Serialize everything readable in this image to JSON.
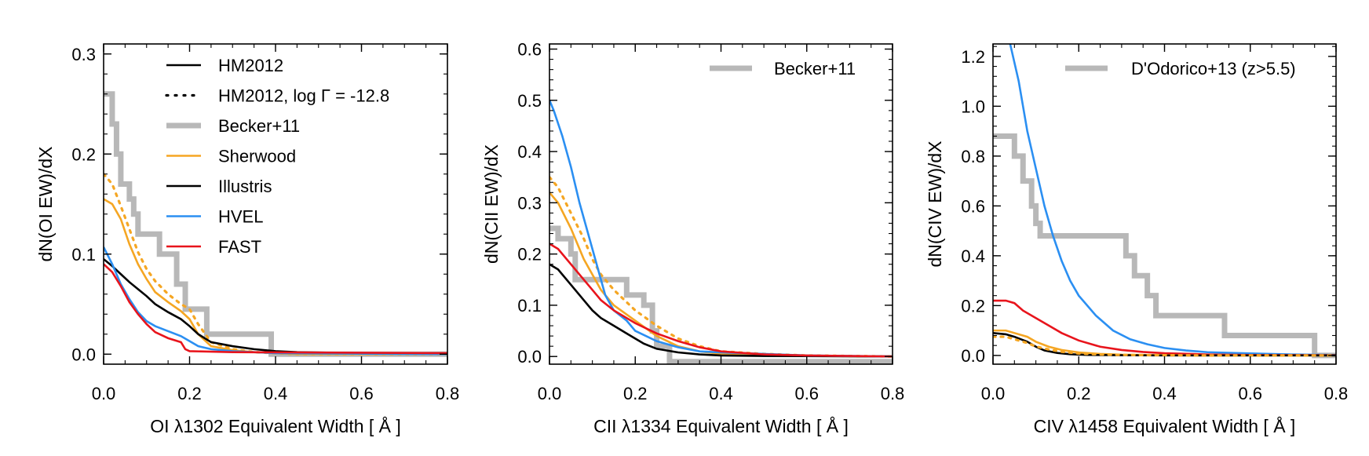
{
  "chart_data": [
    {
      "type": "line",
      "xlabel": "OI λ1302 Equivalent Width [ Å ]",
      "ylabel": "dN(OI EW)/dX",
      "xlim": [
        0.0,
        0.8
      ],
      "ylim": [
        -0.01,
        0.31
      ],
      "xticks": [
        "0.0",
        "0.2",
        "0.4",
        "0.6",
        "0.8"
      ],
      "yticks": [
        "0.0",
        "0.1",
        "0.2",
        "0.3"
      ],
      "legend_position": "top-right",
      "colors": {
        "data": "#b8b8b8",
        "sherwood": "#f5a623",
        "illustris": "#000000",
        "hvel": "#2b8ff2",
        "fast": "#e8141c"
      },
      "legend": [
        {
          "label": "HM2012",
          "style": "solid",
          "color": "#000000"
        },
        {
          "label": "HM2012, log Γ = -12.8",
          "style": "dotted",
          "color": "#000000"
        },
        {
          "label": "Becker+11",
          "style": "thick",
          "color": "#b8b8b8"
        },
        {
          "label": "Sherwood",
          "style": "solid",
          "color": "#f5a623"
        },
        {
          "label": "Illustris",
          "style": "solid",
          "color": "#000000"
        },
        {
          "label": "HVEL",
          "style": "solid",
          "color": "#2b8ff2"
        },
        {
          "label": "FAST",
          "style": "solid",
          "color": "#e8141c"
        }
      ],
      "series": [
        {
          "key": "data",
          "style": "thick",
          "shape": "step",
          "x": [
            0.0,
            0.02,
            0.03,
            0.04,
            0.06,
            0.07,
            0.08,
            0.1,
            0.13,
            0.17,
            0.19,
            0.24,
            0.39,
            0.39,
            0.8
          ],
          "y": [
            0.26,
            0.23,
            0.2,
            0.17,
            0.155,
            0.14,
            0.12,
            0.12,
            0.1,
            0.07,
            0.045,
            0.02,
            0.02,
            0.0,
            0.0
          ]
        },
        {
          "key": "sherwood",
          "style": "solid",
          "shape": "line",
          "x": [
            0.0,
            0.02,
            0.04,
            0.06,
            0.08,
            0.1,
            0.12,
            0.15,
            0.18,
            0.2,
            0.22,
            0.25,
            0.3,
            0.35,
            0.4,
            0.45,
            0.8
          ],
          "y": [
            0.155,
            0.15,
            0.135,
            0.11,
            0.09,
            0.075,
            0.062,
            0.052,
            0.043,
            0.035,
            0.02,
            0.008,
            0.004,
            0.002,
            0.001,
            0.0,
            0.0
          ]
        },
        {
          "key": "sherwood",
          "style": "dotted",
          "shape": "line",
          "x": [
            0.0,
            0.02,
            0.04,
            0.06,
            0.08,
            0.1,
            0.12,
            0.15,
            0.18,
            0.2,
            0.22,
            0.25,
            0.3,
            0.35,
            0.4,
            0.45,
            0.8
          ],
          "y": [
            0.18,
            0.17,
            0.148,
            0.125,
            0.102,
            0.085,
            0.073,
            0.06,
            0.05,
            0.045,
            0.03,
            0.012,
            0.005,
            0.002,
            0.001,
            0.0,
            0.0
          ]
        },
        {
          "key": "illustris",
          "style": "solid",
          "shape": "line",
          "x": [
            0.0,
            0.02,
            0.04,
            0.06,
            0.08,
            0.1,
            0.12,
            0.15,
            0.18,
            0.2,
            0.22,
            0.25,
            0.3,
            0.35,
            0.4,
            0.45,
            0.6,
            0.8
          ],
          "y": [
            0.095,
            0.088,
            0.08,
            0.072,
            0.065,
            0.058,
            0.05,
            0.042,
            0.035,
            0.028,
            0.02,
            0.012,
            0.008,
            0.005,
            0.003,
            0.002,
            0.001,
            0.001
          ]
        },
        {
          "key": "hvel",
          "style": "solid",
          "shape": "line",
          "x": [
            0.0,
            0.02,
            0.04,
            0.06,
            0.08,
            0.1,
            0.12,
            0.15,
            0.18,
            0.2,
            0.22,
            0.25,
            0.3,
            0.35,
            0.4,
            0.8
          ],
          "y": [
            0.107,
            0.09,
            0.07,
            0.055,
            0.042,
            0.033,
            0.028,
            0.023,
            0.018,
            0.013,
            0.008,
            0.005,
            0.003,
            0.002,
            0.001,
            0.0
          ]
        },
        {
          "key": "fast",
          "style": "solid",
          "shape": "line",
          "x": [
            0.0,
            0.02,
            0.04,
            0.06,
            0.08,
            0.1,
            0.12,
            0.15,
            0.18,
            0.19,
            0.2,
            0.3,
            0.8
          ],
          "y": [
            0.09,
            0.082,
            0.068,
            0.052,
            0.04,
            0.03,
            0.022,
            0.016,
            0.012,
            0.005,
            0.003,
            0.002,
            0.001
          ]
        }
      ]
    },
    {
      "type": "line",
      "xlabel": "CII λ1334 Equivalent Width [ Å ]",
      "ylabel": "dN(CII EW)/dX",
      "xlim": [
        0.0,
        0.8
      ],
      "ylim": [
        -0.015,
        0.61
      ],
      "xticks": [
        "0.0",
        "0.2",
        "0.4",
        "0.6",
        "0.8"
      ],
      "yticks": [
        "0.0",
        "0.1",
        "0.2",
        "0.3",
        "0.4",
        "0.5",
        "0.6"
      ],
      "legend_position": "top-right",
      "colors": {
        "data": "#b8b8b8",
        "sherwood": "#f5a623",
        "illustris": "#000000",
        "hvel": "#2b8ff2",
        "fast": "#e8141c"
      },
      "legend": [
        {
          "label": "Becker+11",
          "style": "thick",
          "color": "#b8b8b8"
        }
      ],
      "series": [
        {
          "key": "data",
          "style": "thick",
          "shape": "step",
          "x": [
            0.0,
            0.02,
            0.05,
            0.06,
            0.1,
            0.18,
            0.22,
            0.24,
            0.25,
            0.28,
            0.28,
            0.8
          ],
          "y": [
            0.25,
            0.23,
            0.2,
            0.15,
            0.15,
            0.12,
            0.1,
            0.05,
            0.02,
            0.0,
            -0.01,
            -0.01
          ]
        },
        {
          "key": "sherwood",
          "style": "solid",
          "shape": "line",
          "x": [
            0.0,
            0.02,
            0.05,
            0.08,
            0.1,
            0.12,
            0.15,
            0.2,
            0.25,
            0.3,
            0.35,
            0.4,
            0.5,
            0.6,
            0.8
          ],
          "y": [
            0.32,
            0.3,
            0.25,
            0.19,
            0.16,
            0.13,
            0.1,
            0.07,
            0.04,
            0.02,
            0.01,
            0.005,
            0.002,
            0.001,
            0.0
          ]
        },
        {
          "key": "sherwood",
          "style": "dotted",
          "shape": "line",
          "x": [
            0.0,
            0.02,
            0.05,
            0.08,
            0.1,
            0.12,
            0.15,
            0.2,
            0.25,
            0.3,
            0.35,
            0.4,
            0.5,
            0.6,
            0.8
          ],
          "y": [
            0.35,
            0.33,
            0.28,
            0.23,
            0.19,
            0.16,
            0.13,
            0.09,
            0.06,
            0.035,
            0.02,
            0.01,
            0.005,
            0.002,
            0.0
          ]
        },
        {
          "key": "illustris",
          "style": "solid",
          "shape": "line",
          "x": [
            0.0,
            0.02,
            0.05,
            0.08,
            0.1,
            0.12,
            0.15,
            0.18,
            0.2,
            0.22,
            0.25,
            0.3,
            0.35,
            0.4,
            0.5,
            0.8
          ],
          "y": [
            0.18,
            0.17,
            0.14,
            0.11,
            0.09,
            0.075,
            0.06,
            0.045,
            0.035,
            0.025,
            0.015,
            0.008,
            0.004,
            0.002,
            0.001,
            0.0
          ]
        },
        {
          "key": "hvel",
          "style": "solid",
          "shape": "line",
          "x": [
            0.0,
            0.01,
            0.03,
            0.05,
            0.07,
            0.09,
            0.11,
            0.13,
            0.15,
            0.18,
            0.2,
            0.25,
            0.3,
            0.35,
            0.4,
            0.5,
            0.6,
            0.8
          ],
          "y": [
            0.5,
            0.48,
            0.43,
            0.37,
            0.3,
            0.24,
            0.18,
            0.12,
            0.09,
            0.07,
            0.05,
            0.03,
            0.018,
            0.01,
            0.008,
            0.005,
            0.002,
            0.0
          ]
        },
        {
          "key": "fast",
          "style": "solid",
          "shape": "line",
          "x": [
            0.0,
            0.02,
            0.05,
            0.08,
            0.1,
            0.12,
            0.15,
            0.2,
            0.25,
            0.3,
            0.35,
            0.4,
            0.5,
            0.6,
            0.8
          ],
          "y": [
            0.22,
            0.21,
            0.18,
            0.15,
            0.13,
            0.11,
            0.09,
            0.065,
            0.045,
            0.03,
            0.018,
            0.01,
            0.004,
            0.002,
            0.0
          ]
        }
      ]
    },
    {
      "type": "line",
      "xlabel": "CIV λ1458 Equivalent Width [ Å ]",
      "ylabel": "dN(CIV EW)/dX",
      "xlim": [
        0.0,
        0.8
      ],
      "ylim": [
        -0.035,
        1.25
      ],
      "xticks": [
        "0.0",
        "0.2",
        "0.4",
        "0.6",
        "0.8"
      ],
      "yticks": [
        "0.0",
        "0.2",
        "0.4",
        "0.6",
        "0.8",
        "1.0",
        "1.2"
      ],
      "legend_position": "top-right",
      "colors": {
        "data": "#b8b8b8",
        "sherwood": "#f5a623",
        "illustris": "#000000",
        "hvel": "#2b8ff2",
        "fast": "#e8141c"
      },
      "legend": [
        {
          "label": "D'Odorico+13 (z>5.5)",
          "style": "thick",
          "color": "#b8b8b8"
        }
      ],
      "series": [
        {
          "key": "data",
          "style": "thick",
          "shape": "step",
          "x": [
            0.0,
            0.05,
            0.07,
            0.09,
            0.1,
            0.11,
            0.31,
            0.33,
            0.36,
            0.38,
            0.39,
            0.54,
            0.75,
            0.75,
            0.8
          ],
          "y": [
            0.88,
            0.8,
            0.7,
            0.6,
            0.53,
            0.48,
            0.4,
            0.32,
            0.24,
            0.16,
            0.16,
            0.08,
            0.08,
            0.0,
            0.0
          ]
        },
        {
          "key": "hvel",
          "style": "solid",
          "shape": "line",
          "x": [
            0.0,
            0.04,
            0.06,
            0.08,
            0.1,
            0.12,
            0.14,
            0.16,
            0.18,
            0.2,
            0.24,
            0.28,
            0.32,
            0.36,
            0.4,
            0.45,
            0.5,
            0.6,
            0.7,
            0.8
          ],
          "y": [
            1.35,
            1.25,
            1.1,
            0.9,
            0.75,
            0.6,
            0.48,
            0.38,
            0.3,
            0.24,
            0.16,
            0.1,
            0.065,
            0.045,
            0.03,
            0.02,
            0.013,
            0.008,
            0.004,
            0.002
          ]
        },
        {
          "key": "fast",
          "style": "solid",
          "shape": "line",
          "x": [
            0.0,
            0.03,
            0.05,
            0.07,
            0.1,
            0.13,
            0.16,
            0.2,
            0.25,
            0.3,
            0.35,
            0.4,
            0.5,
            0.6,
            0.8
          ],
          "y": [
            0.22,
            0.22,
            0.21,
            0.18,
            0.15,
            0.12,
            0.09,
            0.06,
            0.035,
            0.022,
            0.014,
            0.009,
            0.004,
            0.002,
            0.001
          ]
        },
        {
          "key": "sherwood",
          "style": "solid",
          "shape": "line",
          "x": [
            0.0,
            0.03,
            0.05,
            0.08,
            0.1,
            0.13,
            0.16,
            0.2,
            0.25,
            0.3,
            0.4,
            0.5,
            0.8
          ],
          "y": [
            0.1,
            0.1,
            0.09,
            0.075,
            0.055,
            0.035,
            0.022,
            0.012,
            0.006,
            0.003,
            0.001,
            0.0,
            0.0
          ]
        },
        {
          "key": "illustris",
          "style": "solid",
          "shape": "line",
          "x": [
            0.0,
            0.03,
            0.05,
            0.08,
            0.1,
            0.12,
            0.15,
            0.18,
            0.22,
            0.3,
            0.4,
            0.8
          ],
          "y": [
            0.09,
            0.085,
            0.075,
            0.055,
            0.035,
            0.02,
            0.01,
            0.005,
            0.002,
            0.001,
            0.0,
            0.0
          ]
        },
        {
          "key": "sherwood",
          "style": "dotted",
          "shape": "line",
          "x": [
            0.0,
            0.03,
            0.05,
            0.08,
            0.1,
            0.13,
            0.16,
            0.2,
            0.25,
            0.3,
            0.4,
            0.5,
            0.8
          ],
          "y": [
            0.075,
            0.075,
            0.065,
            0.05,
            0.036,
            0.024,
            0.015,
            0.008,
            0.004,
            0.002,
            0.001,
            0.0,
            0.0
          ]
        }
      ]
    }
  ]
}
